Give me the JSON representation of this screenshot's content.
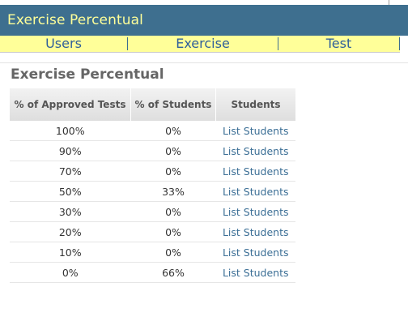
{
  "header": {
    "title": "Exercise Percentual"
  },
  "nav": {
    "items": [
      {
        "label": "Users"
      },
      {
        "label": "Exercise"
      },
      {
        "label": "Test"
      }
    ]
  },
  "main": {
    "title": "Exercise Percentual",
    "table": {
      "columns": [
        "% of Approved Tests",
        "% of Students",
        "Students"
      ],
      "rows": [
        {
          "approved": "100%",
          "students_pct": "0%",
          "link": "List Students"
        },
        {
          "approved": "90%",
          "students_pct": "0%",
          "link": "List Students"
        },
        {
          "approved": "70%",
          "students_pct": "0%",
          "link": "List Students"
        },
        {
          "approved": "50%",
          "students_pct": "33%",
          "link": "List Students"
        },
        {
          "approved": "30%",
          "students_pct": "0%",
          "link": "List Students"
        },
        {
          "approved": "20%",
          "students_pct": "0%",
          "link": "List Students"
        },
        {
          "approved": "10%",
          "students_pct": "0%",
          "link": "List Students"
        },
        {
          "approved": "0%",
          "students_pct": "66%",
          "link": "List Students"
        }
      ]
    }
  },
  "colors": {
    "header_bg": "#3e6f8f",
    "header_text": "#ffff99",
    "nav_bg": "#ffff99",
    "nav_text": "#2f5f9a",
    "link": "#3c6f96"
  }
}
